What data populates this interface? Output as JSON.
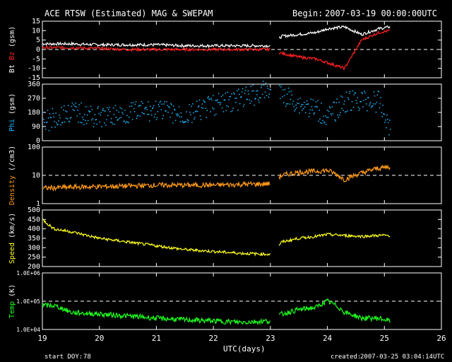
{
  "header": {
    "title": "ACE RTSW (Estimated) MAG & SWEPAM",
    "begin_label": "Begin:",
    "begin_value": "2007-03-19 00:00:00UTC"
  },
  "footer": {
    "start_doy_label": "start DOY:",
    "start_doy_value": "78",
    "created_label": "created:",
    "created_value": "2007-03-25 03:04:14UTC"
  },
  "colors": {
    "background": "#000000",
    "axes": "#ffffff",
    "bt": "#ffffff",
    "bz": "#ff2020",
    "phi": "#20b8ff",
    "density": "#ff9a1a",
    "speed": "#ffff20",
    "temp": "#20ff20"
  },
  "chart_data": [
    {
      "type": "line",
      "panel": "mag",
      "ylabel_parts": [
        "Bt",
        "Bz",
        "(gsm)"
      ],
      "ylim": [
        -15,
        15
      ],
      "yticks": [
        "15",
        "10",
        "5",
        "0",
        "-5",
        "-10",
        "-15"
      ],
      "ytick_values": [
        15,
        10,
        5,
        0,
        -5,
        -10,
        -15
      ],
      "reference_line": 0,
      "series": [
        {
          "name": "Bt",
          "color": "#ffffff",
          "x": [
            19.0,
            19.5,
            20.0,
            20.5,
            21.0,
            21.5,
            22.0,
            22.5,
            23.0,
            23.2,
            23.5,
            23.8,
            24.0,
            24.3,
            24.6,
            24.9,
            25.1
          ],
          "y": [
            3,
            3,
            2.5,
            2.5,
            2.5,
            2,
            2,
            2,
            2,
            7,
            8,
            9,
            11,
            12,
            8,
            11,
            12
          ]
        },
        {
          "name": "Bz",
          "color": "#ff2020",
          "x": [
            19.0,
            19.5,
            20.0,
            20.5,
            21.0,
            21.5,
            22.0,
            22.5,
            23.0,
            23.2,
            23.5,
            23.8,
            24.0,
            24.3,
            24.6,
            24.9,
            25.1
          ],
          "y": [
            1,
            1,
            0.5,
            0,
            0,
            0,
            0,
            0,
            0,
            -2,
            -4,
            -5,
            -7,
            -10,
            5,
            9,
            10
          ]
        }
      ]
    },
    {
      "type": "scatter",
      "panel": "phi",
      "ylabel_parts": [
        "Phi",
        "(gsm)"
      ],
      "ylim": [
        0,
        360
      ],
      "yticks": [
        "360",
        "270",
        "180",
        "90",
        "0"
      ],
      "ytick_values": [
        360,
        270,
        180,
        90,
        0
      ],
      "series": [
        {
          "name": "Phi",
          "color": "#20b8ff",
          "x": [
            19.0,
            19.5,
            20.0,
            20.5,
            21.0,
            21.5,
            22.0,
            22.5,
            23.0,
            23.2,
            23.5,
            23.8,
            24.0,
            24.3,
            24.6,
            24.9,
            25.1
          ],
          "y": [
            120,
            190,
            150,
            180,
            200,
            160,
            230,
            270,
            330,
            300,
            240,
            200,
            150,
            250,
            260,
            250,
            70
          ]
        }
      ]
    },
    {
      "type": "line",
      "panel": "density",
      "ylabel_parts": [
        "Density",
        "(/cm3)"
      ],
      "yscale": "log",
      "ylim": [
        1,
        100
      ],
      "yticks": [
        "100",
        "10",
        "1"
      ],
      "ytick_values": [
        100,
        10,
        1
      ],
      "reference_line": 10,
      "series": [
        {
          "name": "Density",
          "color": "#ff9a1a",
          "x": [
            19.0,
            19.5,
            20.0,
            20.5,
            21.0,
            21.5,
            22.0,
            22.5,
            23.0,
            23.2,
            23.5,
            23.8,
            24.0,
            24.3,
            24.6,
            24.9,
            25.1
          ],
          "y": [
            3.5,
            3.8,
            4,
            4.2,
            4.5,
            4.5,
            4.5,
            4.8,
            5,
            10,
            13,
            14,
            15,
            7,
            12,
            18,
            20
          ]
        }
      ]
    },
    {
      "type": "line",
      "panel": "speed",
      "ylabel_parts": [
        "Speed",
        "(km/s)"
      ],
      "ylim": [
        200,
        500
      ],
      "yticks": [
        "500",
        "450",
        "400",
        "350",
        "300",
        "250",
        "200"
      ],
      "ytick_values": [
        500,
        450,
        400,
        350,
        300,
        250,
        200
      ],
      "series": [
        {
          "name": "Speed",
          "color": "#ffff20",
          "x": [
            19.0,
            19.2,
            19.5,
            20.0,
            20.5,
            21.0,
            21.5,
            22.0,
            22.5,
            23.0,
            23.2,
            23.5,
            23.8,
            24.0,
            24.3,
            24.6,
            24.9,
            25.1
          ],
          "y": [
            450,
            400,
            385,
            350,
            330,
            310,
            290,
            280,
            270,
            265,
            330,
            350,
            360,
            370,
            365,
            360,
            365,
            365
          ]
        }
      ]
    },
    {
      "type": "line",
      "panel": "temp",
      "ylabel_parts": [
        "Temp",
        "(K)"
      ],
      "yscale": "log",
      "ylim": [
        10000,
        1000000
      ],
      "yticks": [
        "1.0E+06",
        "1.0E+05",
        "1.0E+04"
      ],
      "ytick_values": [
        1000000,
        100000,
        10000
      ],
      "reference_line": 100000,
      "series": [
        {
          "name": "Temp",
          "color": "#20ff20",
          "x": [
            19.0,
            19.2,
            19.5,
            20.0,
            20.5,
            21.0,
            21.5,
            22.0,
            22.5,
            23.0,
            23.2,
            23.5,
            23.8,
            24.0,
            24.3,
            24.6,
            24.9,
            25.1
          ],
          "y": [
            70000,
            70000,
            40000,
            35000,
            30000,
            25000,
            22000,
            20000,
            18000,
            20000,
            35000,
            50000,
            60000,
            100000,
            40000,
            25000,
            25000,
            20000
          ]
        }
      ]
    }
  ],
  "x_axis": {
    "label": "UTC(days)",
    "xlim": [
      19,
      26
    ],
    "ticks": [
      "19",
      "20",
      "21",
      "22",
      "23",
      "24",
      "25",
      "26"
    ],
    "tick_values": [
      19,
      20,
      21,
      22,
      23,
      24,
      25,
      26
    ]
  }
}
